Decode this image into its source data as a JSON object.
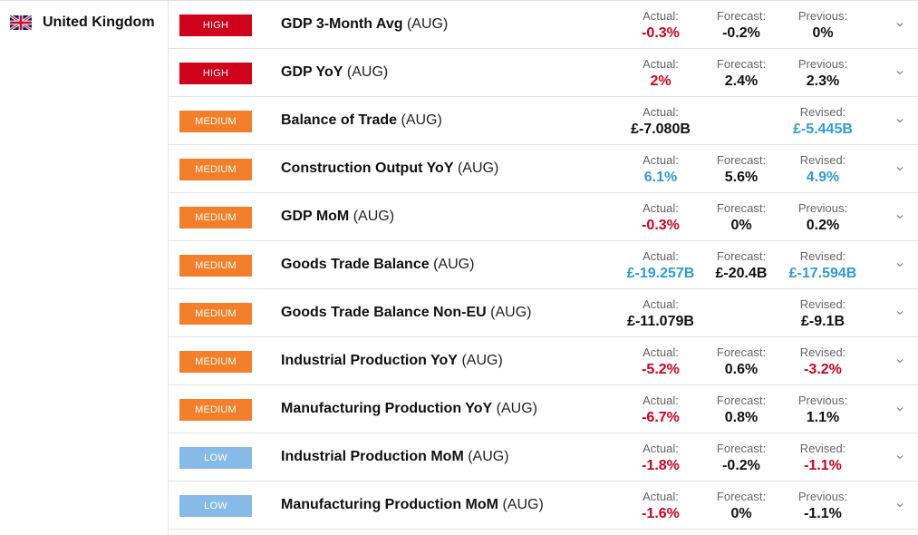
{
  "country": {
    "name": "United Kingdom",
    "flag_icon": "uk-flag-icon"
  },
  "colors": {
    "high": "#d0021b",
    "medium": "#f47f2a",
    "low": "#85bbe6",
    "negative": "#d0021b",
    "positive": "#2d9cdb",
    "neutral": "#111111"
  },
  "events": [
    {
      "impact": "HIGH",
      "name": "GDP 3-Month Avg",
      "period": "(AUG)",
      "actual_label": "Actual:",
      "actual": "-0.3%",
      "actual_color": "red",
      "forecast_label": "Forecast:",
      "forecast": "-0.2%",
      "prior_label": "Previous:",
      "prior": "0%",
      "prior_color": "black"
    },
    {
      "impact": "HIGH",
      "name": "GDP YoY",
      "period": "(AUG)",
      "actual_label": "Actual:",
      "actual": "2%",
      "actual_color": "red",
      "forecast_label": "Forecast:",
      "forecast": "2.4%",
      "prior_label": "Previous:",
      "prior": "2.3%",
      "prior_color": "black"
    },
    {
      "impact": "MEDIUM",
      "name": "Balance of Trade",
      "period": "(AUG)",
      "actual_label": "Actual:",
      "actual": "£-7.080B",
      "actual_color": "black",
      "forecast_label": "",
      "forecast": "",
      "prior_label": "Revised:",
      "prior": "£-5.445B",
      "prior_color": "blue"
    },
    {
      "impact": "MEDIUM",
      "name": "Construction Output YoY",
      "period": "(AUG)",
      "actual_label": "Actual:",
      "actual": "6.1%",
      "actual_color": "blue",
      "forecast_label": "Forecast:",
      "forecast": "5.6%",
      "prior_label": "Revised:",
      "prior": "4.9%",
      "prior_color": "blue"
    },
    {
      "impact": "MEDIUM",
      "name": "GDP MoM",
      "period": "(AUG)",
      "actual_label": "Actual:",
      "actual": "-0.3%",
      "actual_color": "red",
      "forecast_label": "Forecast:",
      "forecast": "0%",
      "prior_label": "Previous:",
      "prior": "0.2%",
      "prior_color": "black"
    },
    {
      "impact": "MEDIUM",
      "name": "Goods Trade Balance",
      "period": "(AUG)",
      "actual_label": "Actual:",
      "actual": "£-19.257B",
      "actual_color": "blue",
      "forecast_label": "Forecast:",
      "forecast": "£-20.4B",
      "prior_label": "Revised:",
      "prior": "£-17.594B",
      "prior_color": "blue"
    },
    {
      "impact": "MEDIUM",
      "name": "Goods Trade Balance Non-EU",
      "period": "(AUG)",
      "actual_label": "Actual:",
      "actual": "£-11.079B",
      "actual_color": "black",
      "forecast_label": "",
      "forecast": "",
      "prior_label": "Revised:",
      "prior": "£-9.1B",
      "prior_color": "black"
    },
    {
      "impact": "MEDIUM",
      "name": "Industrial Production YoY",
      "period": "(AUG)",
      "actual_label": "Actual:",
      "actual": "-5.2%",
      "actual_color": "red",
      "forecast_label": "Forecast:",
      "forecast": "0.6%",
      "prior_label": "Revised:",
      "prior": "-3.2%",
      "prior_color": "red"
    },
    {
      "impact": "MEDIUM",
      "name": "Manufacturing Production YoY",
      "period": "(AUG)",
      "actual_label": "Actual:",
      "actual": "-6.7%",
      "actual_color": "red",
      "forecast_label": "Forecast:",
      "forecast": "0.8%",
      "prior_label": "Previous:",
      "prior": "1.1%",
      "prior_color": "black"
    },
    {
      "impact": "LOW",
      "name": "Industrial Production MoM",
      "period": "(AUG)",
      "actual_label": "Actual:",
      "actual": "-1.8%",
      "actual_color": "red",
      "forecast_label": "Forecast:",
      "forecast": "-0.2%",
      "prior_label": "Revised:",
      "prior": "-1.1%",
      "prior_color": "red"
    },
    {
      "impact": "LOW",
      "name": "Manufacturing Production MoM",
      "period": "(AUG)",
      "actual_label": "Actual:",
      "actual": "-1.6%",
      "actual_color": "red",
      "forecast_label": "Forecast:",
      "forecast": "0%",
      "prior_label": "Previous:",
      "prior": "-1.1%",
      "prior_color": "black"
    }
  ]
}
